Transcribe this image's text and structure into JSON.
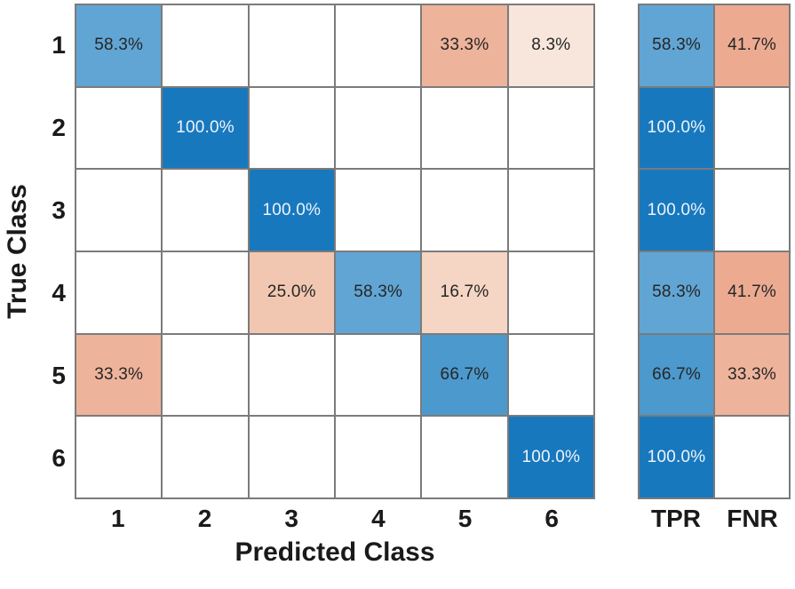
{
  "chart_data": {
    "type": "heatmap",
    "title": "",
    "xlabel": "Predicted Class",
    "ylabel": "True Class",
    "x_categories": [
      "1",
      "2",
      "3",
      "4",
      "5",
      "6"
    ],
    "y_categories": [
      "1",
      "2",
      "3",
      "4",
      "5",
      "6"
    ],
    "matrix_labels": [
      [
        "58.3%",
        "",
        "",
        "",
        "33.3%",
        "8.3%"
      ],
      [
        "",
        "100.0%",
        "",
        "",
        "",
        ""
      ],
      [
        "",
        "",
        "100.0%",
        "",
        "",
        ""
      ],
      [
        "",
        "",
        "25.0%",
        "58.3%",
        "16.7%",
        ""
      ],
      [
        "33.3%",
        "",
        "",
        "",
        "66.7%",
        ""
      ],
      [
        "",
        "",
        "",
        "",
        "",
        "100.0%"
      ]
    ],
    "matrix_percent": [
      [
        58.3,
        null,
        null,
        null,
        33.3,
        8.3
      ],
      [
        null,
        100.0,
        null,
        null,
        null,
        null
      ],
      [
        null,
        null,
        100.0,
        null,
        null,
        null
      ],
      [
        null,
        null,
        25.0,
        58.3,
        16.7,
        null
      ],
      [
        33.3,
        null,
        null,
        null,
        66.7,
        null
      ],
      [
        null,
        null,
        null,
        null,
        null,
        100.0
      ]
    ],
    "summary_columns": [
      "TPR",
      "FNR"
    ],
    "summary_labels": [
      [
        "58.3%",
        "41.7%"
      ],
      [
        "100.0%",
        ""
      ],
      [
        "100.0%",
        ""
      ],
      [
        "58.3%",
        "41.7%"
      ],
      [
        "66.7%",
        "33.3%"
      ],
      [
        "100.0%",
        ""
      ]
    ],
    "summary_percent": [
      [
        58.3,
        41.7
      ],
      [
        100.0,
        null
      ],
      [
        100.0,
        null
      ],
      [
        58.3,
        41.7
      ],
      [
        66.7,
        33.3
      ],
      [
        100.0,
        null
      ]
    ],
    "layout": {
      "grid_on": true,
      "gridline_color": "#7b7b7b",
      "background_color": "#ffffff"
    },
    "cell_colors": {
      "100.0%": {
        "bg": "#1878be",
        "fg": "#edf4fa"
      },
      "66.7%": {
        "bg": "#4c99cd",
        "fg": "#262626"
      },
      "58.3%": {
        "bg": "#61a5d4",
        "fg": "#262626"
      },
      "41.7%": {
        "bg": "#ecab91",
        "fg": "#262626"
      },
      "33.3%": {
        "bg": "#eeb39b",
        "fg": "#262626"
      },
      "25.0%": {
        "bg": "#f2c7b1",
        "fg": "#262626"
      },
      "16.7%": {
        "bg": "#f5d5c4",
        "fg": "#262626"
      },
      "8.3%": {
        "bg": "#f8e6dc",
        "fg": "#262626"
      },
      "empty": {
        "bg": "#ffffff",
        "fg": "#262626"
      }
    }
  }
}
